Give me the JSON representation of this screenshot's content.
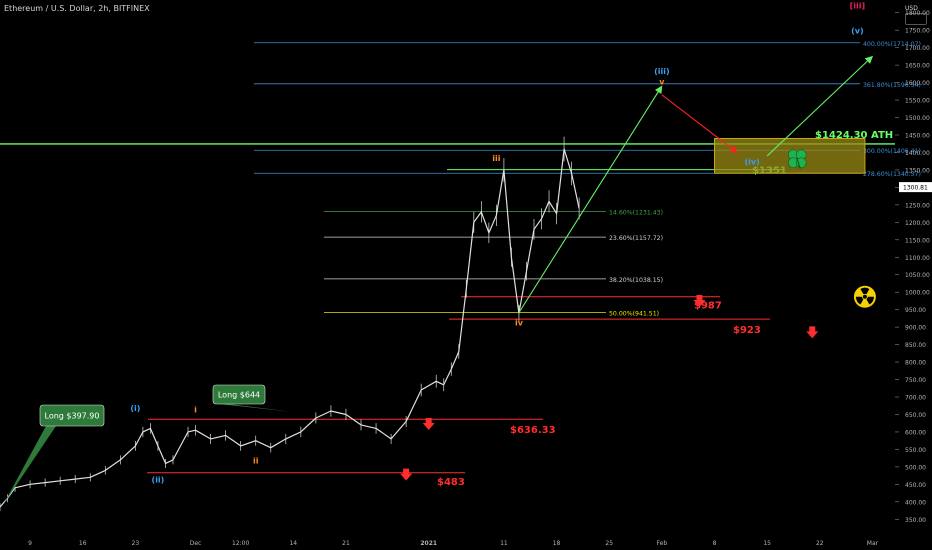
{
  "header": {
    "title": "Ethereum / U.S. Dollar, 2h, BITFINEX",
    "currency": "USD"
  },
  "colors": {
    "background": "#000000",
    "price": "#e0e0e0",
    "fib_line": "#d0d0d0",
    "fib_blue": "#3a8fd8",
    "fib_green": "#3ea24a",
    "fib_yellow": "#e6e600",
    "support": "#ff2e2e",
    "ath": "#66ff66",
    "wave_blue": "#3a9ff0",
    "wave_orange": "#ff8a1e",
    "wave_red": "#e81f63",
    "arrow_green": "#66ee66",
    "arrow_red": "#ff2222",
    "box_fill": "#9a8a16",
    "box_stroke": "#c8a818",
    "callout": "#2d7a3a"
  },
  "chart_data": {
    "type": "line",
    "ylim": [
      325,
      1825
    ],
    "y_ticks": [
      350,
      400,
      450,
      500,
      550,
      600,
      650,
      700,
      750,
      800,
      850,
      900,
      950,
      1000,
      1050,
      1100,
      1150,
      1200,
      1250,
      1300,
      1350,
      1400,
      1450,
      1500,
      1550,
      1600,
      1650,
      1700,
      1750,
      1800
    ],
    "y_tick_labels": [
      "350.00",
      "400.00",
      "450.00",
      "500.00",
      "550.00",
      "600.00",
      "650.00",
      "700.00",
      "750.00",
      "800.00",
      "850.00",
      "900.00",
      "950.00",
      "1000.00",
      "1050.00",
      "1100.00",
      "1150.00",
      "1200.00",
      "1250.00",
      "1300.00",
      "1350.00",
      "1400.00",
      "1450.00",
      "1500.00",
      "1550.00",
      "1600.00",
      "1650.00",
      "1700.00",
      "1750.00",
      "1800.00"
    ],
    "current_price_label": "1300.81",
    "current_price": 1300.81,
    "x_range": [
      "2020-11-05",
      "2021-03-04"
    ],
    "x_ticks": [
      {
        "date": "2020-11-09",
        "label": "9"
      },
      {
        "date": "2020-11-16",
        "label": "16"
      },
      {
        "date": "2020-11-23",
        "label": "23"
      },
      {
        "date": "2020-12-01",
        "label": "Dec"
      },
      {
        "date": "2020-12-07",
        "label": "12:00"
      },
      {
        "date": "2020-12-14",
        "label": "14"
      },
      {
        "date": "2020-12-21",
        "label": "21"
      },
      {
        "date": "2021-01-01",
        "label": "2021"
      },
      {
        "date": "2021-01-11",
        "label": "11"
      },
      {
        "date": "2021-01-18",
        "label": "18"
      },
      {
        "date": "2021-01-25",
        "label": "25"
      },
      {
        "date": "2021-02-01",
        "label": "Feb"
      },
      {
        "date": "2021-02-08",
        "label": "8"
      },
      {
        "date": "2021-02-15",
        "label": "15"
      },
      {
        "date": "2021-02-22",
        "label": "22"
      },
      {
        "date": "2021-03-01",
        "label": "Mar"
      }
    ],
    "price_series": {
      "x": [
        "2020-11-05",
        "2020-11-06",
        "2020-11-07",
        "2020-11-09",
        "2020-11-11",
        "2020-11-13",
        "2020-11-15",
        "2020-11-17",
        "2020-11-19",
        "2020-11-21",
        "2020-11-23",
        "2020-11-24",
        "2020-11-25",
        "2020-11-26",
        "2020-11-27",
        "2020-11-28",
        "2020-11-30",
        "2020-12-01",
        "2020-12-03",
        "2020-12-05",
        "2020-12-07",
        "2020-12-09",
        "2020-12-11",
        "2020-12-13",
        "2020-12-15",
        "2020-12-17",
        "2020-12-19",
        "2020-12-21",
        "2020-12-23",
        "2020-12-25",
        "2020-12-27",
        "2020-12-29",
        "2020-12-31",
        "2021-01-02",
        "2021-01-03",
        "2021-01-04",
        "2021-01-05",
        "2021-01-06",
        "2021-01-07",
        "2021-01-08",
        "2021-01-09",
        "2021-01-10",
        "2021-01-11",
        "2021-01-12",
        "2021-01-13",
        "2021-01-14",
        "2021-01-15",
        "2021-01-16",
        "2021-01-17",
        "2021-01-18",
        "2021-01-19",
        "2021-01-20",
        "2021-01-21"
      ],
      "y": [
        385,
        410,
        440,
        450,
        455,
        460,
        465,
        470,
        490,
        520,
        560,
        600,
        610,
        560,
        510,
        520,
        600,
        605,
        580,
        590,
        560,
        575,
        555,
        580,
        600,
        640,
        660,
        650,
        620,
        610,
        580,
        630,
        720,
        745,
        735,
        780,
        830,
        1010,
        1200,
        1230,
        1170,
        1220,
        1350,
        1100,
        940,
        1060,
        1180,
        1210,
        1260,
        1225,
        1410,
        1340,
        1240
      ]
    },
    "fib_levels": [
      {
        "label": "400.00%(1714.07)",
        "value": 1714.07,
        "color": "#3a8fd8"
      },
      {
        "label": "361.80%(1596.54)",
        "value": 1596.54,
        "color": "#3a8fd8"
      },
      {
        "label": "300.00%(1406.41)",
        "value": 1406.41,
        "color": "#3a8fd8"
      },
      {
        "label": "278.60%(1340.57)",
        "value": 1340.57,
        "color": "#3a8fd8"
      },
      {
        "label": "14.60%(1231.43)",
        "value": 1231.43,
        "color": "#3ea24a"
      },
      {
        "label": "23.60%(1157.72)",
        "value": 1157.72,
        "color": "#d0d0d0"
      },
      {
        "label": "38.20%(1038.15)",
        "value": 1038.15,
        "color": "#d0d0d0"
      },
      {
        "label": "50.00%(941.51)",
        "value": 941.51,
        "color": "#e6e600"
      }
    ],
    "horizontal_levels": [
      {
        "label": "$1424.30 ATH",
        "value": 1424.3,
        "color": "#66ff66"
      },
      {
        "label": "$1351",
        "value": 1351,
        "color": "#66ff66"
      },
      {
        "label": "$987",
        "value": 987,
        "color": "#ff2e2e"
      },
      {
        "label": "$923",
        "value": 923,
        "color": "#ff2e2e"
      },
      {
        "label": "$636.33",
        "value": 636.33,
        "color": "#ff2e2e"
      },
      {
        "label": "$483",
        "value": 483,
        "color": "#ff2e2e"
      }
    ],
    "callouts": [
      {
        "label": "Long $397.90",
        "date": "2020-11-05",
        "value": 397.9
      },
      {
        "label": "Long $644",
        "date": "2020-12-14",
        "value": 644
      }
    ],
    "wave_labels": [
      {
        "label": "(i)",
        "date": "2020-11-23",
        "value": 660,
        "color": "#3a9ff0"
      },
      {
        "label": "(ii)",
        "date": "2020-11-26",
        "value": 455,
        "color": "#3a9ff0"
      },
      {
        "label": "i",
        "date": "2020-12-01",
        "value": 655,
        "color": "#ff8a1e"
      },
      {
        "label": "ii",
        "date": "2020-12-09",
        "value": 510,
        "color": "#ff8a1e"
      },
      {
        "label": "iii",
        "date": "2021-01-10",
        "value": 1375,
        "color": "#ff8a1e"
      },
      {
        "label": "iv",
        "date": "2021-01-13",
        "value": 905,
        "color": "#ff8a1e"
      },
      {
        "label": "(iii)",
        "date": "2021-02-01",
        "value": 1625,
        "color": "#3a9ff0"
      },
      {
        "label": "v",
        "date": "2021-02-01",
        "value": 1595,
        "color": "#ff8a1e"
      },
      {
        "label": "(iv)",
        "date": "2021-02-13",
        "value": 1365,
        "color": "#3a9ff0"
      },
      {
        "label": "(v)",
        "date": "2021-02-27",
        "value": 1740,
        "color": "#3a9ff0"
      },
      {
        "label": "[iii]",
        "date": "2021-02-27",
        "value": 1812,
        "color": "#e81f63"
      }
    ],
    "projection_box": {
      "from": "2021-02-08",
      "to": "2021-02-28",
      "low": 1340.57,
      "high": 1440
    },
    "projection_arrows": [
      {
        "from_date": "2021-01-13",
        "from_value": 941.51,
        "to_date": "2021-02-01",
        "to_value": 1590,
        "color": "#66ee66"
      },
      {
        "from_date": "2021-02-01",
        "from_value": 1565,
        "to_date": "2021-02-11",
        "to_value": 1400,
        "color": "#ff2222"
      },
      {
        "from_date": "2021-02-15",
        "from_value": 1390,
        "to_date": "2021-03-01",
        "to_value": 1675,
        "color": "#66ee66"
      }
    ],
    "down_arrows": [
      {
        "date": "2021-02-06",
        "value": 972
      },
      {
        "date": "2021-02-21",
        "value": 882
      },
      {
        "date": "2021-01-01",
        "value": 620
      },
      {
        "date": "2020-12-29",
        "value": 475
      }
    ],
    "icons": [
      {
        "name": "radiation-icon",
        "date": "2021-02-28",
        "value": 987
      },
      {
        "name": "clover-icon",
        "date": "2021-02-19",
        "value": 1382
      }
    ]
  }
}
